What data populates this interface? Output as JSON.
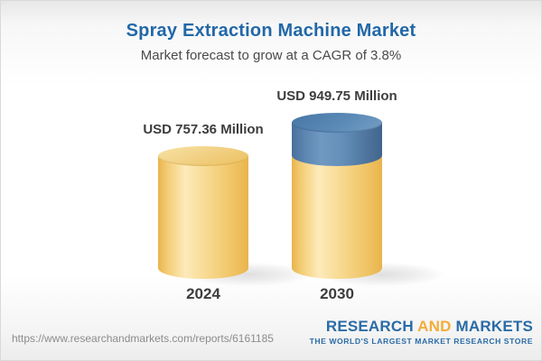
{
  "header": {
    "title": "Spray Extraction Machine Market",
    "subtitle": "Market forecast to grow at a CAGR of 3.8%"
  },
  "chart_data": {
    "type": "bar",
    "variant": "3d-cylinder",
    "title": "Spray Extraction Machine Market",
    "subtitle": "Market forecast to grow at a CAGR of 3.8%",
    "cagr_percent": 3.8,
    "unit": "USD Million",
    "categories": [
      "2024",
      "2030"
    ],
    "values": [
      757.36,
      949.75
    ],
    "value_labels": [
      "USD 757.36 Million",
      "USD 949.75 Million"
    ],
    "legend": "none",
    "colors": {
      "base_segment": "#f0c35f",
      "growth_segment": "#5a87b4",
      "label_text": "#3d3d3d",
      "title_text": "#2268a8"
    }
  },
  "footer": {
    "url": "https://www.researchandmarkets.com/reports/6161185",
    "logo": {
      "word1": "RESEARCH",
      "word2": "AND",
      "word3": "MARKETS",
      "tagline": "THE WORLD'S LARGEST MARKET RESEARCH STORE",
      "blue": "#2a6ba6",
      "gold": "#f2ac38"
    }
  }
}
